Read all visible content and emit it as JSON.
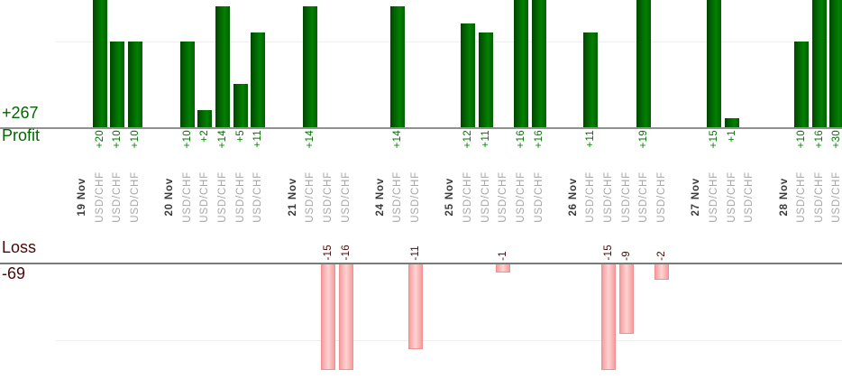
{
  "page": {
    "background": "#ffffff"
  },
  "chart_data": {
    "type": "bar",
    "title": "",
    "instrument": "USD/CHF",
    "panels": {
      "profit": {
        "axis_label": "Profit",
        "total": "+267"
      },
      "loss": {
        "axis_label": "Loss",
        "total": "-69"
      }
    },
    "groups": [
      {
        "date": "19 Nov",
        "values": [
          20,
          10,
          10
        ]
      },
      {
        "date": "20 Nov",
        "values": [
          10,
          2,
          14,
          5,
          11
        ]
      },
      {
        "date": "21 Nov",
        "values": [
          14,
          -15,
          -16
        ]
      },
      {
        "date": "24 Nov",
        "values": [
          14,
          -11
        ]
      },
      {
        "date": "25 Nov",
        "values": [
          12,
          11,
          -1,
          16,
          16
        ]
      },
      {
        "date": "26 Nov",
        "values": [
          11,
          -15,
          -9,
          19,
          -2
        ]
      },
      {
        "date": "27 Nov",
        "values": [
          15,
          1,
          0
        ]
      },
      {
        "date": "28 Nov",
        "values": [
          10,
          16,
          30
        ]
      }
    ],
    "value_label_format": "signed",
    "legend_position": "none",
    "grid": true,
    "xlabel": "",
    "ylabel_top": "Profit",
    "ylabel_bottom": "Loss"
  },
  "colors": {
    "profit_bar_dark": "#014601",
    "profit_bar_light": "#028102",
    "profit_bar_edge": "#015e01",
    "profit_value_text": "#007800",
    "profit_side_text": "#006600",
    "loss_bar_edge": "#f59c9c",
    "loss_bar_center": "#ffd3d3",
    "loss_bar_border": "#ef9191",
    "loss_text": "#4a0808",
    "date_text": "#3a3a3a",
    "instrument_text": "#a6a6a6",
    "profit_axis_line": "#909090",
    "loss_axis_line": "#7a7a7a",
    "grid_line": "#efefef"
  }
}
